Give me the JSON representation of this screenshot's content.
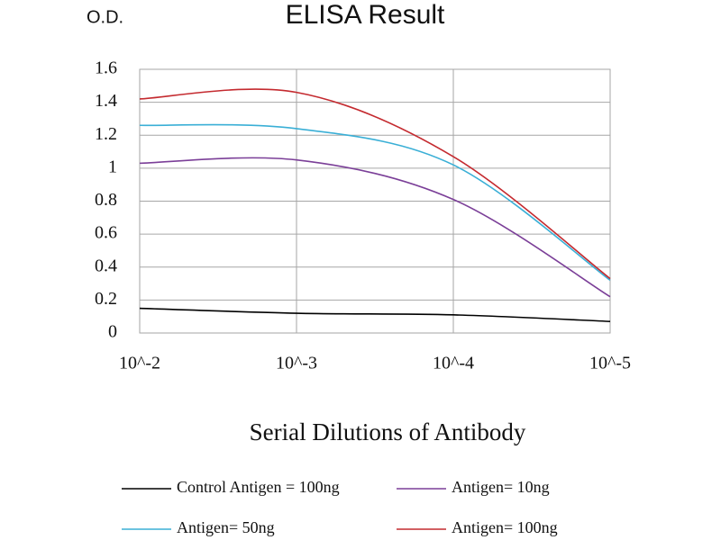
{
  "chart_data": {
    "type": "line",
    "title": "ELISA Result",
    "y_label": "O.D.",
    "x_label": "Serial Dilutions of Antibody",
    "categories": [
      "10^-2",
      "10^-3",
      "10^-4",
      "10^-5"
    ],
    "series": [
      {
        "name": "Control Antigen = 100ng",
        "color": "#000000",
        "values": [
          0.15,
          0.12,
          0.11,
          0.07
        ]
      },
      {
        "name": "Antigen= 10ng",
        "color": "#7b3f98",
        "values": [
          1.03,
          1.05,
          0.81,
          0.22
        ]
      },
      {
        "name": "Antigen= 50ng",
        "color": "#3aafd6",
        "values": [
          1.26,
          1.24,
          1.02,
          0.32
        ]
      },
      {
        "name": "Antigen= 100ng",
        "color": "#c42a2f",
        "values": [
          1.42,
          1.46,
          1.07,
          0.33
        ]
      }
    ],
    "ylim": [
      0,
      1.6
    ],
    "yticks": [
      0,
      0.2,
      0.4,
      0.6,
      0.8,
      1,
      1.2,
      1.4,
      1.6
    ],
    "grid": true,
    "legend": "bottom"
  }
}
